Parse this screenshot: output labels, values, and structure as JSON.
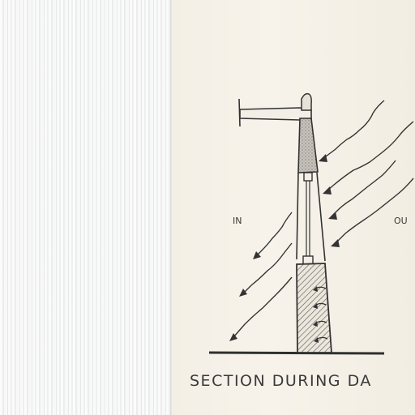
{
  "labels": {
    "inside": "IN",
    "outside": "OU",
    "caption": "SECTION DURING DA"
  }
}
